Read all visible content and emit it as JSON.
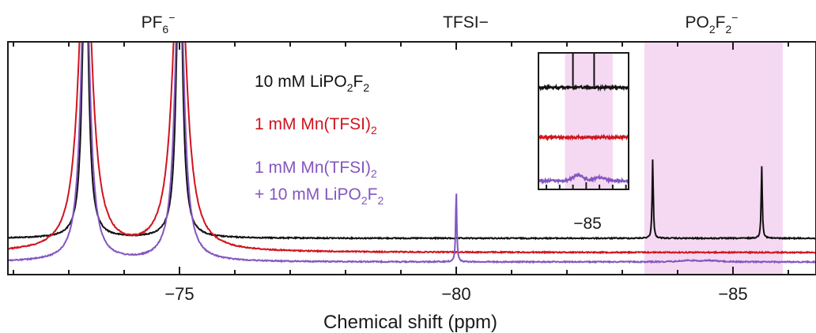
{
  "chart_data": {
    "type": "line",
    "xlabel": "Chemical shift (ppm)",
    "ylabel": "",
    "x_reversed": true,
    "xlim": [
      -71.9,
      -86.5
    ],
    "x_ticks": [
      -75,
      -80,
      -85
    ],
    "x_tick_labels": [
      "−75",
      "−80",
      "−85"
    ],
    "grid": false,
    "top_labels": {
      "pf6": {
        "main": "PF",
        "sub": "6",
        "sup": "−"
      },
      "tfsi": {
        "main": "TFSI−"
      },
      "po2f2": {
        "main": "PO",
        "sub1": "2",
        "mid": "F",
        "sub2": "2",
        "sup": "−"
      }
    },
    "highlight_band": {
      "x_range": [
        -83.4,
        -85.9
      ],
      "color": "#f5d9f2"
    },
    "legend": {
      "placement": "center",
      "entries": [
        {
          "parts": [
            "10 mM LiPO",
            "2",
            "F",
            "2"
          ],
          "color": "#111111"
        },
        {
          "parts": [
            "1 mM Mn(TFSI)",
            "2"
          ],
          "color": "#d0141e"
        },
        {
          "parts": [
            "1 mM Mn(TFSI)",
            "2"
          ],
          "color": "#8456c0"
        },
        {
          "parts": [
            "+ 10 mM LiPO",
            "2",
            "F",
            "2"
          ],
          "color": "#8456c0"
        }
      ]
    },
    "series": [
      {
        "color": "#111111",
        "baseline": 0.12,
        "peaks": [
          {
            "x": -73.3,
            "height": 3.0,
            "width": 0.06
          },
          {
            "x": -75.0,
            "height": 3.0,
            "width": 0.06
          },
          {
            "x": -83.55,
            "height": 0.72,
            "width": 0.012
          },
          {
            "x": -85.52,
            "height": 0.65,
            "width": 0.012
          }
        ]
      },
      {
        "color": "#d0141e",
        "baseline": 0.04,
        "peaks": [
          {
            "x": -73.3,
            "height": 3.0,
            "width": 0.14
          },
          {
            "x": -75.0,
            "height": 3.0,
            "width": 0.14
          }
        ]
      },
      {
        "color": "#8456c0",
        "baseline": 0.0,
        "peaks": [
          {
            "x": -73.3,
            "height": 3.0,
            "width": 0.09
          },
          {
            "x": -75.0,
            "height": 3.0,
            "width": 0.09
          },
          {
            "x": -80.0,
            "height": 0.66,
            "width": 0.012
          },
          {
            "x": -84.2,
            "height": 0.012,
            "width": 0.2
          },
          {
            "x": -84.6,
            "height": 0.01,
            "width": 0.2
          }
        ]
      }
    ],
    "inset": {
      "xlim": [
        -84.1,
        -85.8
      ],
      "x_ticks": [
        -84.25,
        -84.5,
        -84.75,
        -85.0,
        -85.25,
        -85.5,
        -85.75
      ],
      "x_tick_labels": [
        "−85"
      ],
      "highlight_band": {
        "x_range": [
          -84.6,
          -85.5
        ],
        "color": "#f5d9f2"
      },
      "traces": [
        {
          "color": "#111111",
          "peaks": [
            {
              "x": -84.75,
              "height": 1
            },
            {
              "x": -85.15,
              "height": 1
            }
          ]
        },
        {
          "color": "#d0141e",
          "peaks": []
        },
        {
          "color": "#8456c0",
          "bump": true
        }
      ]
    }
  }
}
